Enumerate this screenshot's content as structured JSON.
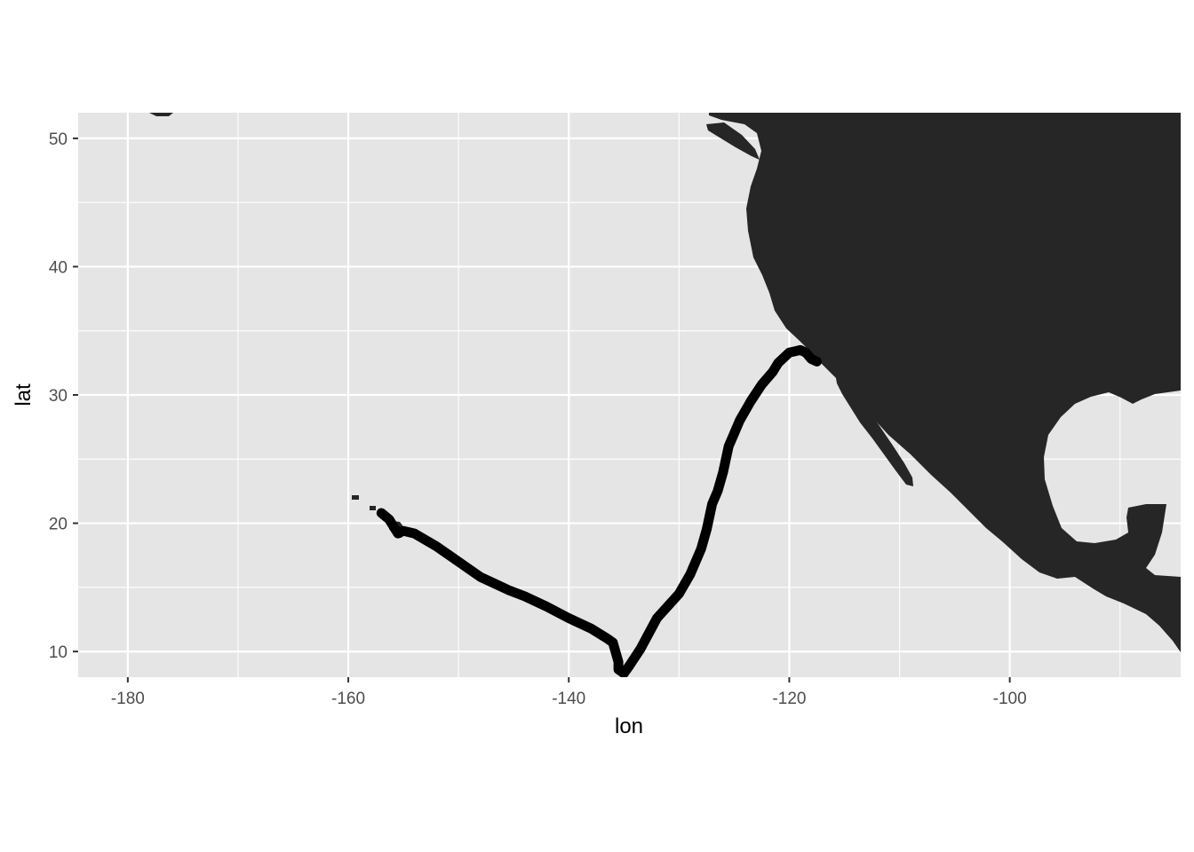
{
  "chart_data": {
    "type": "map",
    "title": "",
    "xlabel": "lon",
    "ylabel": "lat",
    "xlim": [
      -184.5,
      -84.5
    ],
    "ylim": [
      8,
      52
    ],
    "x_ticks": [
      -180,
      -160,
      -140,
      -120,
      -100
    ],
    "x_tick_labels": [
      "-180",
      "-160",
      "-140",
      "-120",
      "-100"
    ],
    "y_ticks": [
      10,
      20,
      30,
      40,
      50
    ],
    "y_tick_labels": [
      "10",
      "20",
      "30",
      "40",
      "50"
    ],
    "grid": true,
    "colors": {
      "panel_background": "#e5e5e5",
      "grid": "#ffffff",
      "land": "#262626",
      "track": "#000000"
    },
    "track": {
      "lon": [
        -157.0,
        -156.3,
        -155.5,
        -155.0,
        -154.0,
        -152.0,
        -150.0,
        -148.0,
        -146.5,
        -145.5,
        -144.0,
        -142.0,
        -140.0,
        -138.0,
        -136.5,
        -136.0,
        -135.5,
        -135.5,
        -135.0,
        -134.5,
        -133.5,
        -133.0,
        -132.0,
        -130.0,
        -129.0,
        -128.0,
        -127.5,
        -127.0,
        -126.5,
        -126.0,
        -125.5,
        -125.0,
        -124.5,
        -123.5,
        -122.5,
        -121.5,
        -121.0,
        -120.0,
        -119.5,
        -119.0,
        -118.5,
        -118.0,
        -117.5
      ],
      "lat": [
        20.8,
        20.3,
        19.2,
        19.4,
        19.2,
        18.2,
        17.0,
        15.8,
        15.2,
        14.8,
        14.3,
        13.5,
        12.6,
        11.8,
        11.0,
        10.7,
        9.2,
        8.6,
        8.3,
        8.9,
        10.2,
        11.0,
        12.6,
        14.5,
        16.0,
        18.0,
        19.5,
        21.5,
        22.5,
        24.0,
        26.0,
        27.0,
        28.0,
        29.5,
        30.8,
        31.8,
        32.5,
        33.3,
        33.4,
        33.5,
        33.3,
        32.8,
        32.6
      ]
    }
  }
}
